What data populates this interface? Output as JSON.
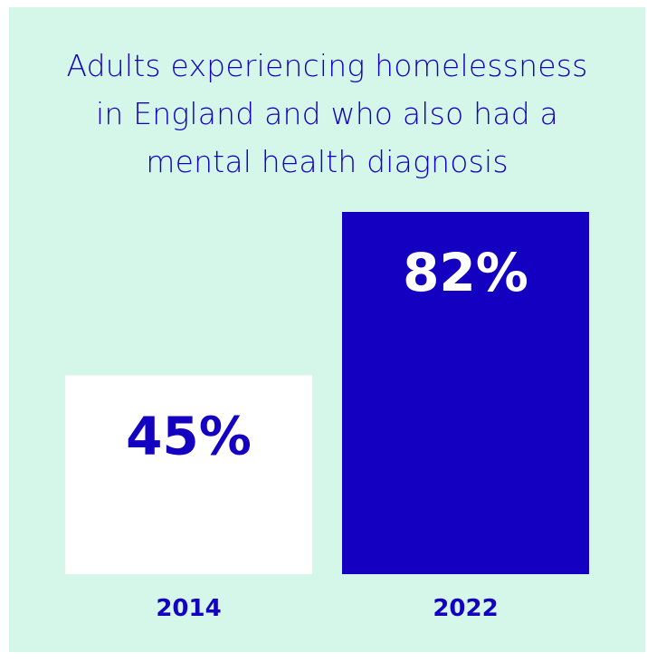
{
  "chart_data": {
    "type": "bar",
    "title_lines": [
      "Adults experiencing homelessness",
      "in England and who also had a",
      "mental health diagnosis"
    ],
    "categories": [
      "2014",
      "2022"
    ],
    "values": [
      45,
      82
    ],
    "data_labels": [
      "45%",
      "82%"
    ],
    "ylim": [
      0,
      82
    ],
    "colors": {
      "background": "#d4f7ea",
      "text": "#1400c0",
      "bars": [
        "#ffffff",
        "#1400c0"
      ],
      "data_label_colors": [
        "#1400c0",
        "#ffffff"
      ]
    }
  }
}
